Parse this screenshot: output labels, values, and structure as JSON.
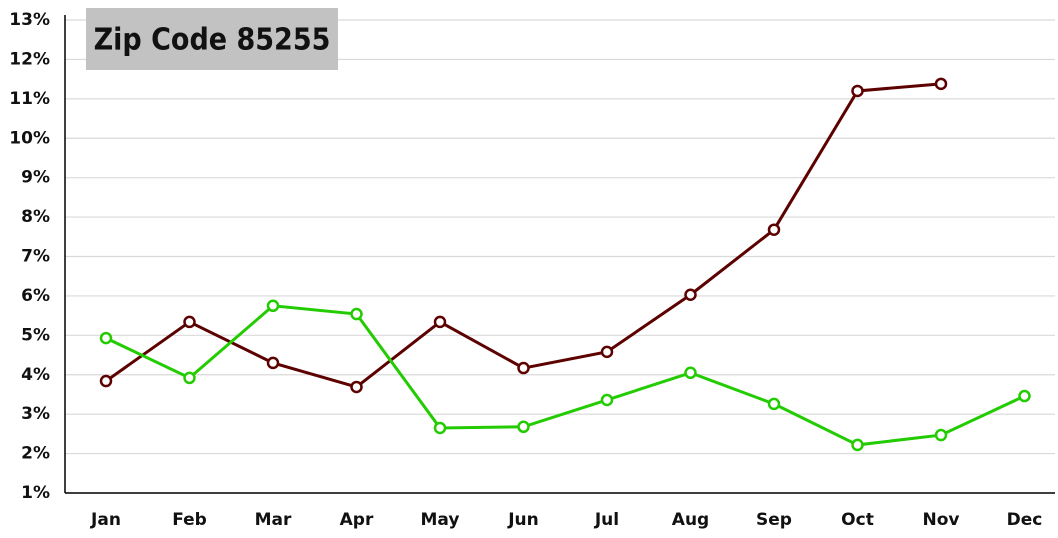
{
  "chart_data": {
    "type": "line",
    "title": "Zip Code 85255",
    "categories": [
      "Jan",
      "Feb",
      "Mar",
      "Apr",
      "May",
      "Jun",
      "Jul",
      "Aug",
      "Sep",
      "Oct",
      "Nov",
      "Dec"
    ],
    "series": [
      {
        "color": "#5c0000",
        "values": [
          3.84,
          5.34,
          4.3,
          3.69,
          5.34,
          4.17,
          4.58,
          6.03,
          7.68,
          11.2,
          11.38,
          null
        ]
      },
      {
        "color": "#22cc00",
        "values": [
          4.93,
          3.92,
          5.75,
          5.54,
          2.65,
          2.68,
          3.36,
          4.05,
          3.26,
          2.22,
          2.47,
          3.46
        ]
      }
    ],
    "ylim": [
      1,
      13
    ],
    "yticks": [
      {
        "value": 1,
        "label": "1%"
      },
      {
        "value": 2,
        "label": "2%"
      },
      {
        "value": 3,
        "label": "3%"
      },
      {
        "value": 4,
        "label": "4%"
      },
      {
        "value": 5,
        "label": "5%"
      },
      {
        "value": 6,
        "label": "6%"
      },
      {
        "value": 7,
        "label": "7%"
      },
      {
        "value": 8,
        "label": "8%"
      },
      {
        "value": 9,
        "label": "9%"
      },
      {
        "value": 10,
        "label": "10%"
      },
      {
        "value": 11,
        "label": "11%"
      },
      {
        "value": 12,
        "label": "12%"
      },
      {
        "value": 13,
        "label": "13%"
      }
    ],
    "grid": true
  }
}
